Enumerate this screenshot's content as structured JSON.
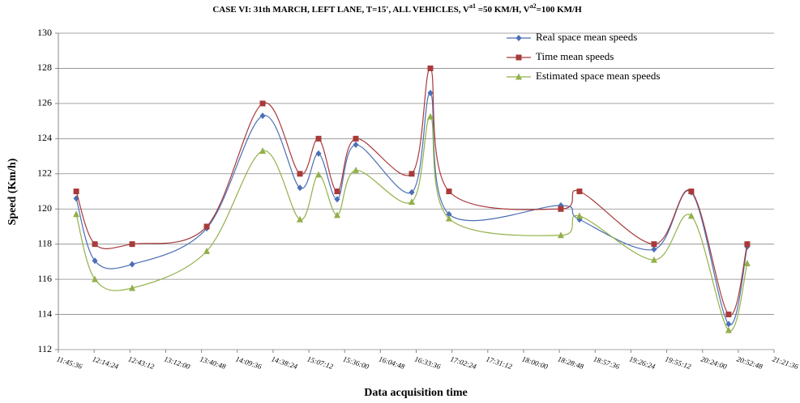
{
  "chart_data": {
    "type": "line",
    "title": [
      "CASE VI: 31th MARCH, LEFT LANE, T=15', ALL VEHICLES, V",
      "a1",
      " =50 KM/H, V",
      "a2",
      "=100 KM/H"
    ],
    "x_label": "Data acquisition time",
    "y_label": "Speed (Km/h)",
    "x": [
      43200,
      44100,
      45900,
      49500,
      52200,
      54000,
      54900,
      55800,
      56700,
      59400,
      60300,
      61200,
      66600,
      67500,
      71100,
      72900,
      74700,
      75600
    ],
    "series": [
      {
        "name": "Real space mean speeds",
        "color": "#4a6fb5",
        "marker": "diamond",
        "values": [
          120.6,
          117.05,
          116.85,
          118.9,
          125.3,
          121.2,
          123.15,
          120.55,
          123.65,
          120.95,
          126.6,
          119.7,
          120.2,
          119.4,
          117.7,
          120.95,
          113.45,
          117.85
        ]
      },
      {
        "name": "Time mean speeds",
        "color": "#a83a3a",
        "marker": "square",
        "values": [
          121,
          118,
          118,
          119,
          126,
          122,
          124,
          121,
          124,
          122,
          128,
          121,
          120,
          121,
          118,
          121,
          114,
          118
        ]
      },
      {
        "name": "Estimated space mean speeds",
        "color": "#92b04a",
        "marker": "triangle",
        "values": [
          119.7,
          116.0,
          115.5,
          117.6,
          123.3,
          119.4,
          121.95,
          119.65,
          122.2,
          120.4,
          125.25,
          119.45,
          118.5,
          119.6,
          117.1,
          119.6,
          113.1,
          116.9
        ]
      }
    ],
    "xlim": [
      42336,
      76896
    ],
    "xticks": [
      {
        "value": 42336,
        "label": "11:45:36"
      },
      {
        "value": 44064,
        "label": "12:14:24"
      },
      {
        "value": 45792,
        "label": "12:43:12"
      },
      {
        "value": 47520,
        "label": "13:12:00"
      },
      {
        "value": 49248,
        "label": "13:40:48"
      },
      {
        "value": 50976,
        "label": "14:09:36"
      },
      {
        "value": 52704,
        "label": "14:38:24"
      },
      {
        "value": 54432,
        "label": "15:07:12"
      },
      {
        "value": 56160,
        "label": "15:36:00"
      },
      {
        "value": 57888,
        "label": "16:04:48"
      },
      {
        "value": 59616,
        "label": "16:33:36"
      },
      {
        "value": 61344,
        "label": "17:02:24"
      },
      {
        "value": 63072,
        "label": "17:31:12"
      },
      {
        "value": 64800,
        "label": "18:00:00"
      },
      {
        "value": 66528,
        "label": "18:28:48"
      },
      {
        "value": 68256,
        "label": "18:57:36"
      },
      {
        "value": 69984,
        "label": "19:26:24"
      },
      {
        "value": 71712,
        "label": "19:55:12"
      },
      {
        "value": 73440,
        "label": "20:24:00"
      },
      {
        "value": 75168,
        "label": "20:52:48"
      },
      {
        "value": 76896,
        "label": "21:21:36"
      }
    ],
    "ylim": [
      112,
      130
    ],
    "yticks": [
      112,
      114,
      116,
      118,
      120,
      122,
      124,
      126,
      128,
      130
    ],
    "grid": true,
    "smooth": true,
    "legend": "top-right"
  }
}
